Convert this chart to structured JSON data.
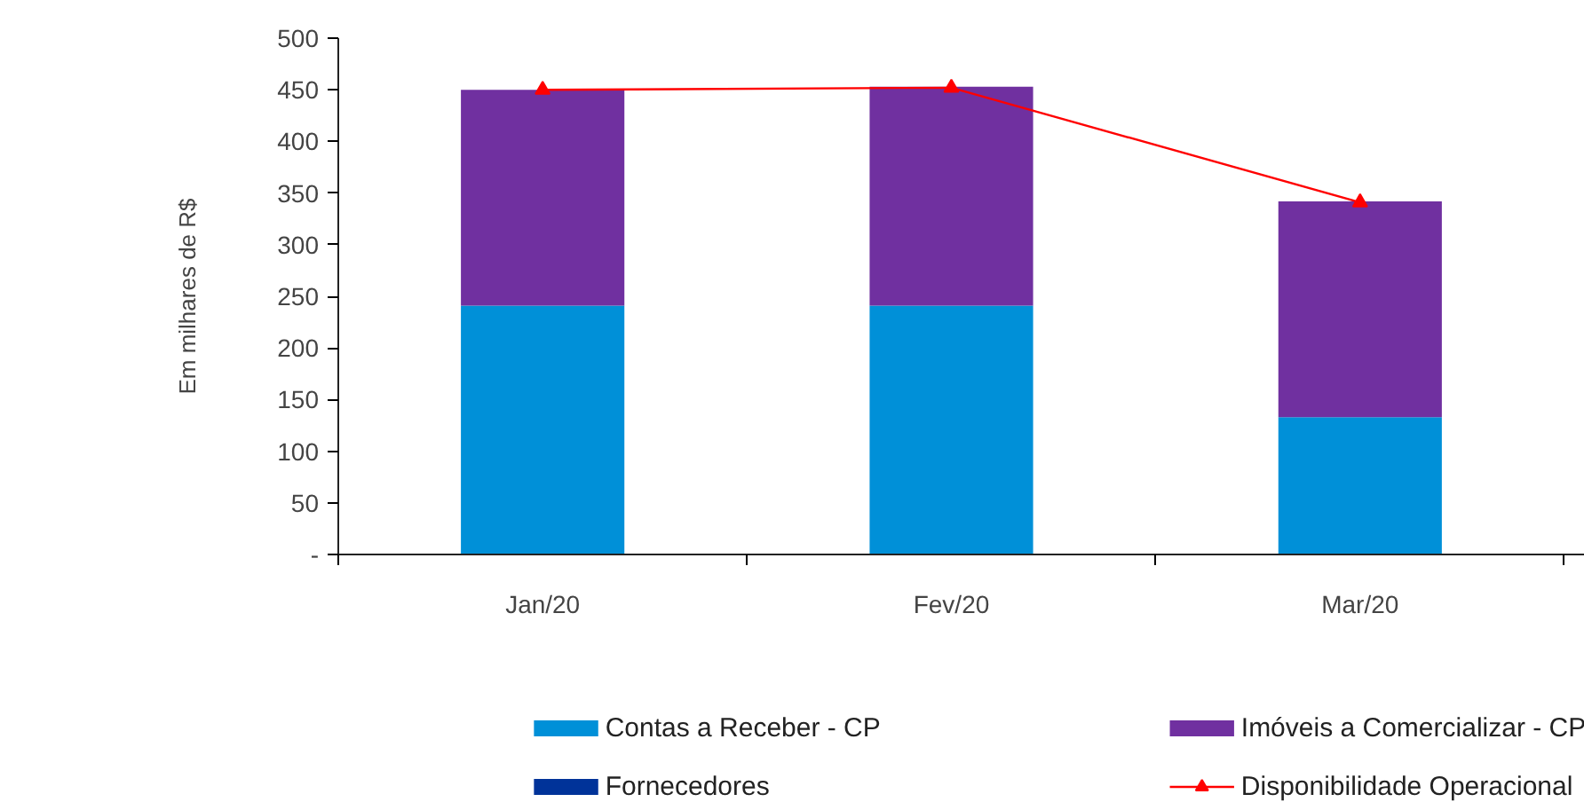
{
  "chart_data": {
    "type": "bar",
    "stacked": true,
    "ylabel": "Em milhares de R$",
    "categories": [
      "Jan/20",
      "Fev/20",
      "Mar/20"
    ],
    "series": [
      {
        "name": "Contas a Receber  - CP",
        "color": "#0090d8",
        "values": [
          241,
          241,
          133
        ]
      },
      {
        "name": "Imóveis a Comercializar - CP",
        "color": "#7030a0",
        "values": [
          209,
          212,
          209
        ]
      },
      {
        "name": "Fornecedores",
        "color": "#003399",
        "values": [
          0,
          0,
          0
        ]
      },
      {
        "name": "Disponibilidade Operacional",
        "type": "line",
        "color": "#ff0000",
        "marker": "triangle",
        "values": [
          450,
          452,
          341
        ]
      }
    ],
    "ylim": [
      0,
      500
    ],
    "yticks": [
      {
        "value": 0,
        "label": "-"
      },
      50,
      100,
      150,
      200,
      250,
      300,
      350,
      400,
      450,
      500
    ],
    "grid": false,
    "legend": "bottom"
  }
}
